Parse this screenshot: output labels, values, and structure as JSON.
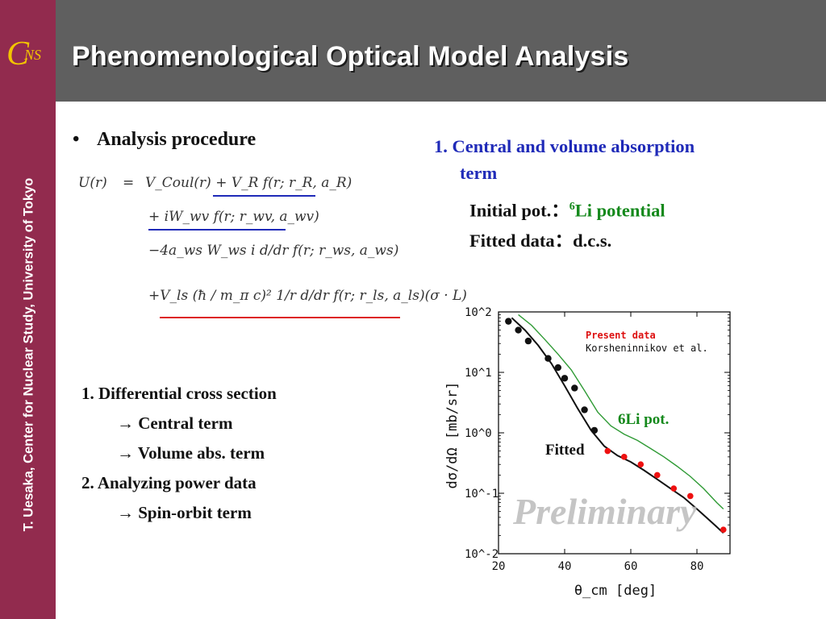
{
  "logo": {
    "letter_large": "C",
    "letters_small": "NS"
  },
  "sidebar": {
    "vertical_text": "T. Uesaka, Center for Nuclear Study, University of Tokyo"
  },
  "header": {
    "title": "Phenomenological Optical Model Analysis"
  },
  "left": {
    "bullet": "•",
    "heading": "Analysis procedure",
    "formula": {
      "lhs": "U(r)",
      "eq": "=",
      "line1": "V_Coul(r) + V_R f(r; r_R, a_R)",
      "line2": "+ iW_wv f(r; r_wv, a_wv)",
      "line3": "−4a_ws W_ws i d/dr f(r; r_ws, a_ws)",
      "line4": "+V_ls (ħ / m_π c)² 1/r d/dr f(r; r_ls, a_ls)(σ · L)"
    },
    "list": [
      "1. Differential cross section",
      "→ Central term",
      "→ Volume abs. term",
      "2. Analyzing power data",
      "→ Spin-orbit term"
    ]
  },
  "right": {
    "step_line1": "1. Central and volume absorption",
    "step_line2": "term",
    "initial_label": "Initial pot.：",
    "initial_sup": "6",
    "initial_value": "Li potential",
    "fitted_label": "Fitted data：",
    "fitted_value": "d.c.s."
  },
  "chart_data": {
    "type": "scatter",
    "xlabel": "θ_cm [deg]",
    "ylabel": "dσ/dΩ [mb/sr]",
    "xlim": [
      20,
      90
    ],
    "ylim": [
      0.01,
      100
    ],
    "y_scale": "log",
    "x_ticks": [
      "20",
      "40",
      "60",
      "80"
    ],
    "y_ticks": [
      "10^2",
      "10^1",
      "10^0",
      "10^-1",
      "10^-2"
    ],
    "legend": [
      "Present data",
      "Korsheninnikov et al."
    ],
    "legend_colors": [
      "#dd1111",
      "#111111"
    ],
    "annotations": [
      "Fitted",
      "6Li pot.",
      "Preliminary"
    ],
    "series": [
      {
        "name": "Present data",
        "color": "#ee1111",
        "type": "scatter",
        "x": [
          53,
          58,
          63,
          68,
          73,
          78,
          88
        ],
        "y": [
          0.5,
          0.4,
          0.3,
          0.2,
          0.12,
          0.09,
          0.025
        ]
      },
      {
        "name": "Korsheninnikov et al.",
        "color": "#111111",
        "type": "scatter",
        "x": [
          23,
          26,
          29,
          35,
          38,
          40,
          43,
          46,
          49
        ],
        "y": [
          70,
          50,
          33,
          17,
          12,
          8,
          5.5,
          2.4,
          1.1
        ]
      },
      {
        "name": "Fitted",
        "color": "#111111",
        "type": "line",
        "x": [
          24,
          28,
          32,
          36,
          40,
          44,
          48,
          52,
          56,
          60,
          64,
          68,
          72,
          76,
          80,
          84,
          88
        ],
        "y": [
          80,
          50,
          28,
          14,
          6,
          2.5,
          1.1,
          0.6,
          0.42,
          0.33,
          0.24,
          0.17,
          0.12,
          0.085,
          0.055,
          0.035,
          0.022
        ]
      },
      {
        "name": "6Li pot.",
        "color": "#2e9a34",
        "type": "line",
        "x": [
          26,
          30,
          34,
          38,
          42,
          46,
          50,
          54,
          58,
          62,
          66,
          70,
          74,
          78,
          82,
          86,
          88
        ],
        "y": [
          90,
          60,
          35,
          20,
          11,
          5,
          2.2,
          1.3,
          0.95,
          0.75,
          0.55,
          0.4,
          0.28,
          0.19,
          0.12,
          0.07,
          0.055
        ]
      }
    ]
  }
}
